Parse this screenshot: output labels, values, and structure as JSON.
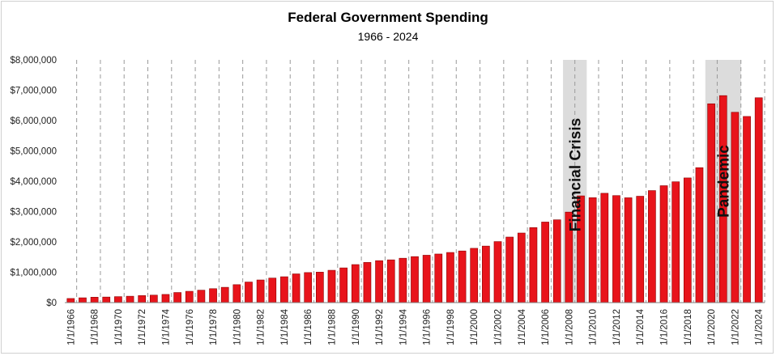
{
  "chart_data": {
    "type": "bar",
    "title": "Federal Government Spending",
    "subtitle": "1966 - 2024",
    "xlabel": "",
    "ylabel": "",
    "ylim": [
      0,
      8000000
    ],
    "yticks": [
      0,
      1000000,
      2000000,
      3000000,
      4000000,
      5000000,
      6000000,
      7000000,
      8000000
    ],
    "ytick_labels": [
      "$0",
      "$1,000,000",
      "$2,000,000",
      "$3,000,000",
      "$4,000,000",
      "$5,000,000",
      "$6,000,000",
      "$7,000,000",
      "$8,000,000"
    ],
    "grid": "vertical dashed",
    "categories": [
      "1/1/1966",
      "1/1/1967",
      "1/1/1968",
      "1/1/1969",
      "1/1/1970",
      "1/1/1971",
      "1/1/1972",
      "1/1/1973",
      "1/1/1974",
      "1/1/1975",
      "1/1/1976",
      "1/1/1977",
      "1/1/1978",
      "1/1/1979",
      "1/1/1980",
      "1/1/1981",
      "1/1/1982",
      "1/1/1983",
      "1/1/1984",
      "1/1/1985",
      "1/1/1986",
      "1/1/1987",
      "1/1/1988",
      "1/1/1989",
      "1/1/1990",
      "1/1/1991",
      "1/1/1992",
      "1/1/1993",
      "1/1/1994",
      "1/1/1995",
      "1/1/1996",
      "1/1/1997",
      "1/1/1998",
      "1/1/1999",
      "1/1/2000",
      "1/1/2001",
      "1/1/2002",
      "1/1/2003",
      "1/1/2004",
      "1/1/2005",
      "1/1/2006",
      "1/1/2007",
      "1/1/2008",
      "1/1/2009",
      "1/1/2010",
      "1/1/2011",
      "1/1/2012",
      "1/1/2013",
      "1/1/2014",
      "1/1/2015",
      "1/1/2016",
      "1/1/2017",
      "1/1/2018",
      "1/1/2019",
      "1/1/2020",
      "1/1/2021",
      "1/1/2022",
      "1/1/2023",
      "1/1/2024"
    ],
    "shown_tick_labels": [
      "1/1/1966",
      "1/1/1968",
      "1/1/1970",
      "1/1/1972",
      "1/1/1974",
      "1/1/1976",
      "1/1/1978",
      "1/1/1980",
      "1/1/1982",
      "1/1/1984",
      "1/1/1986",
      "1/1/1988",
      "1/1/1990",
      "1/1/1992",
      "1/1/1994",
      "1/1/1996",
      "1/1/1998",
      "1/1/2000",
      "1/1/2002",
      "1/1/2004",
      "1/1/2006",
      "1/1/2008",
      "1/1/2010",
      "1/1/2012",
      "1/1/2014",
      "1/1/2016",
      "1/1/2018",
      "1/1/2020",
      "1/1/2022",
      "1/1/2024"
    ],
    "series": [
      {
        "name": "Federal Government Spending",
        "color": "#e8141b",
        "values": [
          135000,
          158000,
          178000,
          183000,
          196000,
          210000,
          231000,
          246000,
          269000,
          332000,
          372000,
          409000,
          459000,
          504000,
          591000,
          678000,
          746000,
          808000,
          852000,
          946000,
          990000,
          1004000,
          1065000,
          1144000,
          1253000,
          1324000,
          1382000,
          1409000,
          1462000,
          1516000,
          1561000,
          1601000,
          1652000,
          1702000,
          1789000,
          1863000,
          2011000,
          2160000,
          2293000,
          2472000,
          2655000,
          2729000,
          2983000,
          3518000,
          3457000,
          3603000,
          3527000,
          3455000,
          3506000,
          3692000,
          3853000,
          3982000,
          4109000,
          4447000,
          6553000,
          6822000,
          6273000,
          6135000,
          6752000
        ]
      }
    ],
    "shaded_regions": [
      {
        "label": "Financial Crisis",
        "from": "1/1/2008",
        "to": "1/1/2009"
      },
      {
        "label": "Pandemic",
        "from": "1/1/2020",
        "to": "1/1/2022"
      }
    ],
    "colors": {
      "bar": "#e8141b",
      "bar_edge": "#8a0000",
      "shade": "#dcdcdc",
      "grid": "#9a9a9a"
    }
  }
}
